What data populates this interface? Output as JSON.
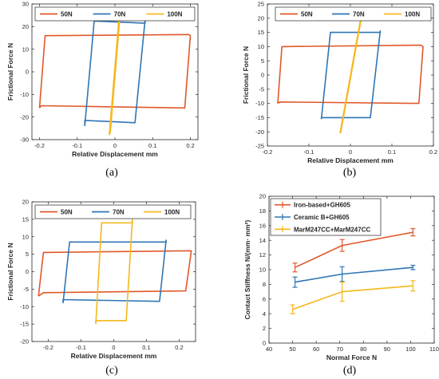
{
  "colors": {
    "orange": "#e0582a",
    "blue": "#2f75b5",
    "yellow": "#f6b71c",
    "axis": "#262626"
  },
  "chart_data": [
    {
      "id": "a",
      "caption": "(a)",
      "type": "line",
      "xlabel": "Relative Displacement mm",
      "ylabel": "Frictional Force N",
      "xlim": [
        -0.22,
        0.22
      ],
      "ylim": [
        -30,
        30
      ],
      "xticks": [
        -0.2,
        -0.1,
        0,
        0.1,
        0.2
      ],
      "xtick_labels": [
        "-0.2",
        "-0.1",
        "0",
        "0.1",
        "0.2"
      ],
      "yticks": [
        -30,
        -20,
        -10,
        0,
        10,
        20,
        30
      ],
      "ytick_labels": [
        "-30",
        "-20",
        "-10",
        "0",
        "10",
        "20",
        "30"
      ],
      "legend_position": "top",
      "series": [
        {
          "name": "50N",
          "color": "orange",
          "x": [
            -0.2,
            -0.185,
            0.195,
            0.2,
            0.185,
            -0.195,
            -0.2
          ],
          "y": [
            -16,
            16,
            16.5,
            16,
            -16,
            -15,
            -16
          ]
        },
        {
          "name": "70N",
          "color": "blue",
          "x": [
            -0.08,
            -0.055,
            0.08,
            0.08,
            0.053,
            -0.08,
            -0.08
          ],
          "y": [
            -24,
            22.5,
            21.5,
            23,
            -22.5,
            -21.5,
            -24
          ]
        },
        {
          "name": "100N",
          "color": "yellow",
          "x": [
            -0.015,
            0.012,
            0.015,
            -0.012,
            -0.015
          ],
          "y": [
            -28,
            26.5,
            28,
            -26.5,
            -28
          ]
        }
      ]
    },
    {
      "id": "b",
      "caption": "(b)",
      "type": "line",
      "xlabel": "Relative Displacement mm",
      "ylabel": "Frictional Force N",
      "xlim": [
        -0.2,
        0.2
      ],
      "ylim": [
        -25,
        25
      ],
      "xticks": [
        -0.2,
        -0.1,
        0,
        0.1,
        0.2
      ],
      "xtick_labels": [
        "-0.2",
        "-0.1",
        "0",
        "0.1",
        "0.2"
      ],
      "yticks": [
        -25,
        -20,
        -15,
        -10,
        -5,
        0,
        5,
        10,
        15,
        20,
        25
      ],
      "ytick_labels": [
        "-25",
        "-20",
        "-15",
        "-10",
        "-5",
        "0",
        "5",
        "10",
        "15",
        "20",
        "25"
      ],
      "legend_position": "top",
      "series": [
        {
          "name": "50N",
          "color": "orange",
          "x": [
            -0.175,
            -0.165,
            0.17,
            0.175,
            0.165,
            -0.17,
            -0.175
          ],
          "y": [
            -10,
            10,
            10.5,
            10,
            -10,
            -9.5,
            -10
          ]
        },
        {
          "name": "70N",
          "color": "blue",
          "x": [
            -0.07,
            -0.048,
            0.072,
            0.072,
            0.048,
            -0.07,
            -0.07
          ],
          "y": [
            -15.5,
            15,
            15,
            15.5,
            -15,
            -15,
            -15.5
          ]
        },
        {
          "name": "100N",
          "color": "yellow",
          "x": [
            -0.025,
            0.025,
            0.027,
            -0.023,
            -0.025
          ],
          "y": [
            -20.5,
            20,
            20.5,
            -20,
            -20.5
          ]
        }
      ]
    },
    {
      "id": "c",
      "caption": "(c)",
      "type": "line",
      "xlabel": "Relative Displacement mm",
      "ylabel": "Frictional Force N",
      "xlim": [
        -0.25,
        0.25
      ],
      "ylim": [
        -20,
        20
      ],
      "xticks": [
        -0.2,
        -0.1,
        0,
        0.1,
        0.2
      ],
      "xtick_labels": [
        "-0.2",
        "-0.1",
        "0",
        "0.1",
        "0.2"
      ],
      "yticks": [
        -20,
        -15,
        -10,
        -5,
        0,
        5,
        10,
        15,
        20
      ],
      "ytick_labels": [
        "-20",
        "-15",
        "-10",
        "-5",
        "0",
        "5",
        "10",
        "15",
        "20"
      ],
      "legend_position": "top",
      "series": [
        {
          "name": "50N",
          "color": "orange",
          "x": [
            -0.23,
            -0.215,
            0.235,
            0.237,
            0.22,
            -0.215,
            -0.23
          ],
          "y": [
            -7,
            5.5,
            6,
            6,
            -5.5,
            -6,
            -7
          ]
        },
        {
          "name": "70N",
          "color": "blue",
          "x": [
            -0.155,
            -0.135,
            0.16,
            0.16,
            0.14,
            -0.155,
            -0.155
          ],
          "y": [
            -9,
            8.5,
            8.5,
            9,
            -8.5,
            -8,
            -9
          ]
        },
        {
          "name": "100N",
          "color": "yellow",
          "x": [
            -0.055,
            -0.037,
            0.057,
            0.057,
            0.038,
            -0.055,
            -0.055
          ],
          "y": [
            -15,
            14,
            14,
            15,
            -14,
            -14,
            -15
          ]
        }
      ]
    },
    {
      "id": "d",
      "caption": "(d)",
      "type": "line",
      "xlabel": "Normal Force N",
      "ylabel": "Contact Stiffness N/(mm· mm²)",
      "xlim": [
        40,
        110
      ],
      "ylim": [
        0,
        20
      ],
      "xticks": [
        40,
        50,
        60,
        70,
        80,
        90,
        100,
        110
      ],
      "xtick_labels": [
        "40",
        "50",
        "60",
        "70",
        "80",
        "90",
        "100",
        "110"
      ],
      "yticks": [
        0,
        2,
        4,
        6,
        8,
        10,
        12,
        14,
        16,
        18,
        20
      ],
      "ytick_labels": [
        "0",
        "2",
        "4",
        "6",
        "8",
        "10",
        "12",
        "14",
        "16",
        "18",
        "20"
      ],
      "legend_position": "top-left",
      "series": [
        {
          "name": "Iron-based+GH605",
          "color": "orange",
          "x": [
            51,
            71,
            101
          ],
          "y": [
            10.3,
            13.3,
            15.1
          ],
          "err": [
            0.6,
            0.8,
            0.5
          ]
        },
        {
          "name": "Ceramic B+GH605",
          "color": "blue",
          "x": [
            51,
            71,
            101
          ],
          "y": [
            8.3,
            9.4,
            10.3
          ],
          "err": [
            0.7,
            1.0,
            0.3
          ]
        },
        {
          "name": "MarM247CC+MarM247CC",
          "color": "yellow",
          "x": [
            50,
            71,
            101
          ],
          "y": [
            4.6,
            7.0,
            7.8
          ],
          "err": [
            0.6,
            1.3,
            0.7
          ]
        }
      ]
    }
  ]
}
